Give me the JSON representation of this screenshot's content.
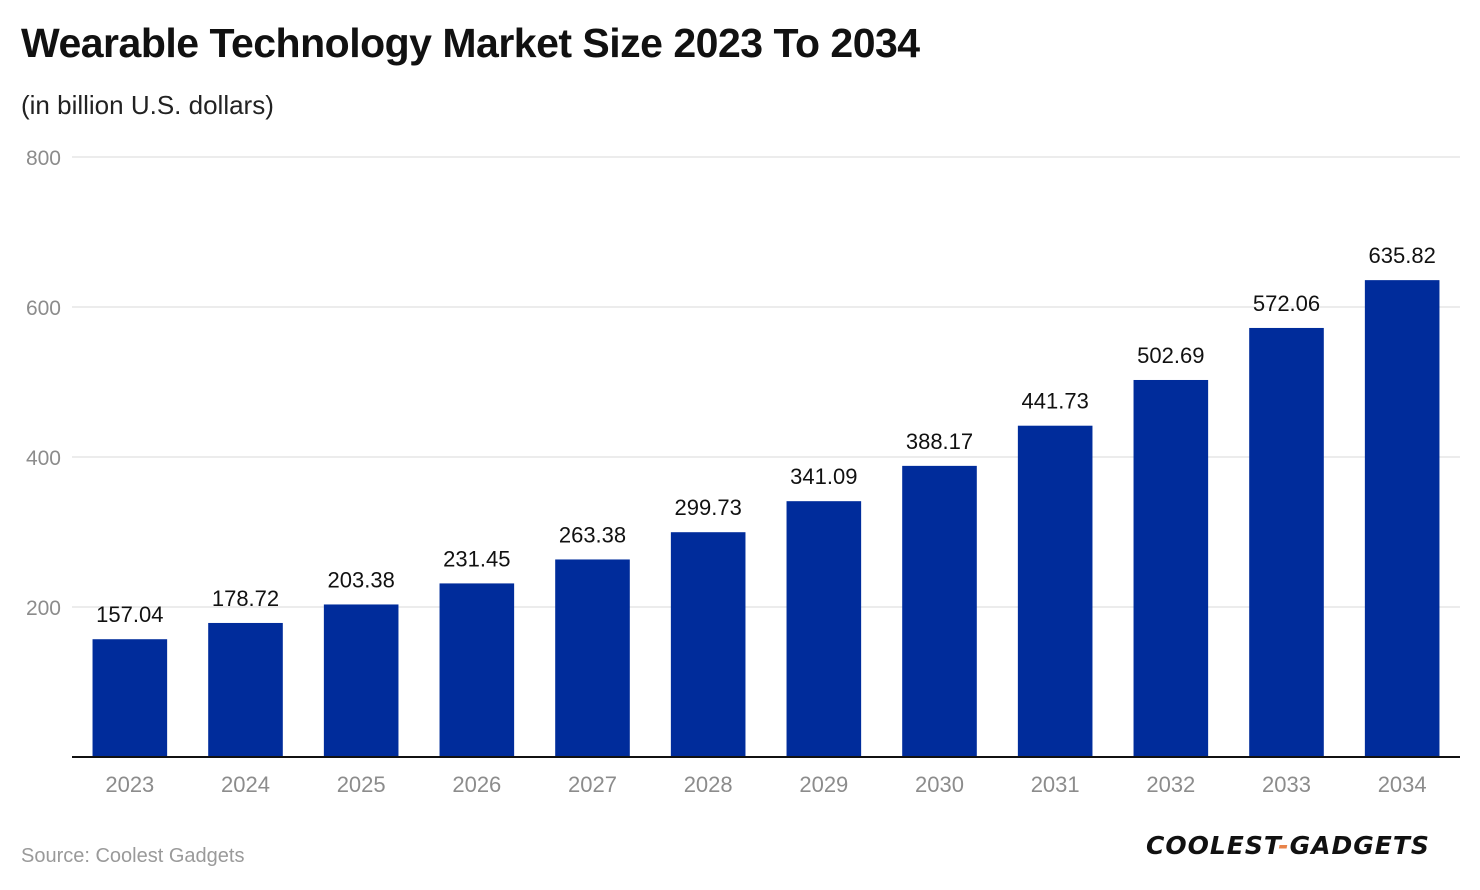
{
  "title": "Wearable Technology Market Size 2023 To 2034",
  "subtitle": "(in billion U.S. dollars)",
  "source": "Source: Coolest Gadgets",
  "logo": {
    "left": "COOLEST",
    "dash": "-",
    "right": "GADGETS"
  },
  "colors": {
    "bar": "#002c9b",
    "grid": "#e6e6e6",
    "axis": "#111111",
    "tick_label": "#8c8c8c",
    "value_label": "#111111"
  },
  "chart_data": {
    "type": "bar",
    "title": "Wearable Technology Market Size 2023 To 2034",
    "subtitle": "(in billion U.S. dollars)",
    "xlabel": "",
    "ylabel": "",
    "categories": [
      "2023",
      "2024",
      "2025",
      "2026",
      "2027",
      "2028",
      "2029",
      "2030",
      "2031",
      "2032",
      "2033",
      "2034"
    ],
    "values": [
      157.04,
      178.72,
      203.38,
      231.45,
      263.38,
      299.73,
      341.09,
      388.17,
      441.73,
      502.69,
      572.06,
      635.82
    ],
    "value_labels": [
      "157.04",
      "178.72",
      "203.38",
      "231.45",
      "263.38",
      "299.73",
      "341.09",
      "388.17",
      "441.73",
      "502.69",
      "572.06",
      "635.82"
    ],
    "ylim": [
      0,
      800
    ],
    "yticks": [
      200,
      400,
      600,
      800
    ],
    "grid": true,
    "legend": "none"
  }
}
